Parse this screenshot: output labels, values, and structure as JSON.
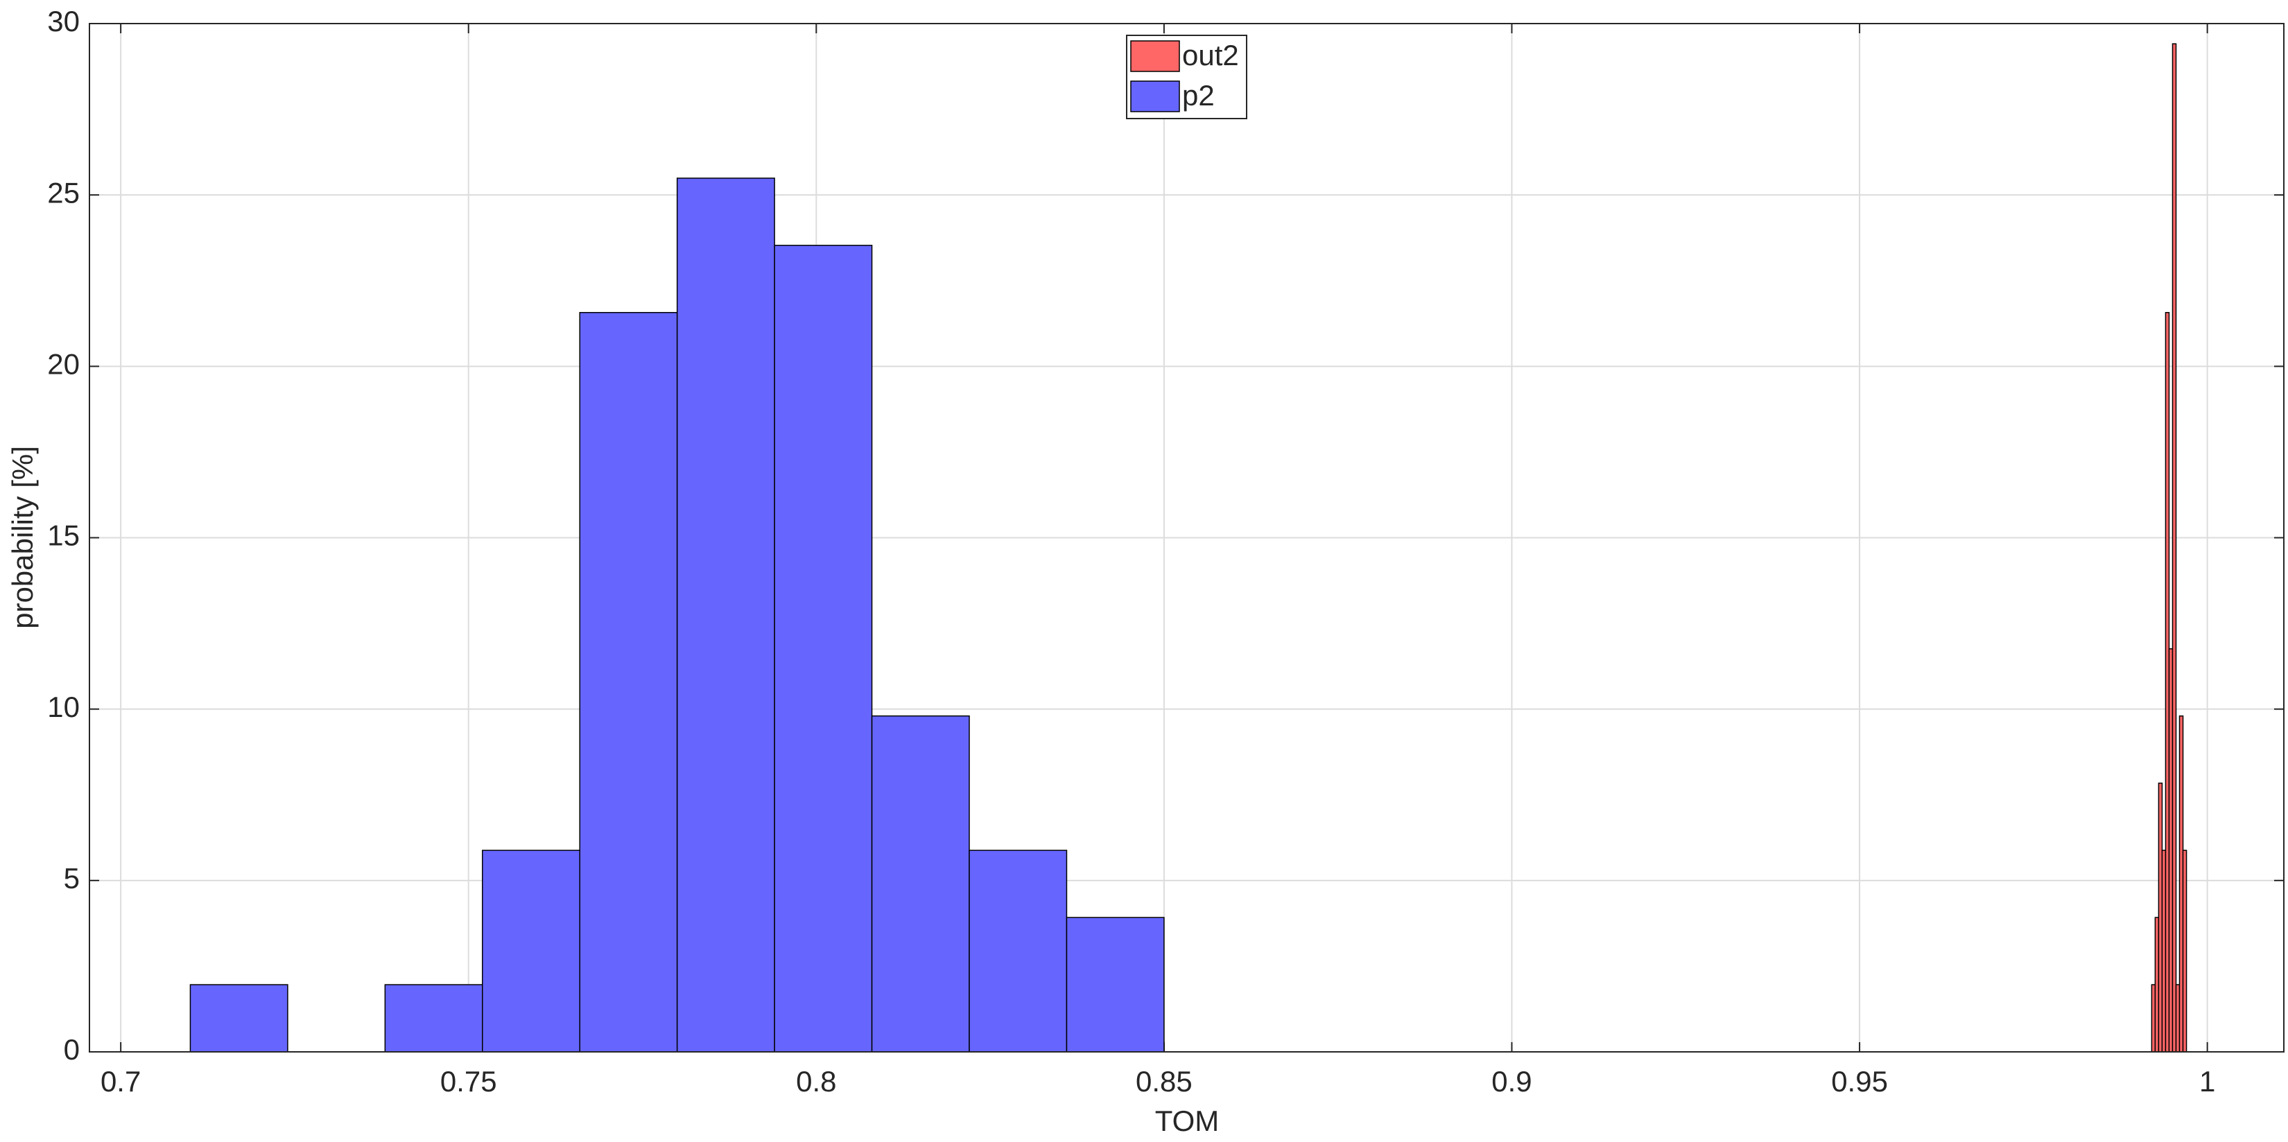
{
  "chart_data": {
    "type": "histogram",
    "xlabel": "TOM",
    "ylabel": "probability [%]",
    "xlim": [
      0.6955,
      1.011
    ],
    "ylim": [
      0,
      30
    ],
    "xticks": [
      0.7,
      0.75,
      0.8,
      0.85,
      0.9,
      0.95,
      1
    ],
    "yticks": [
      0,
      5,
      10,
      15,
      20,
      25,
      30
    ],
    "grid": true,
    "legend": "top",
    "series": [
      {
        "name": "out2",
        "color": "#ff6666",
        "bins": [
          0.992,
          0.9925,
          0.993,
          0.9935,
          0.994,
          0.9945,
          0.995,
          0.9955,
          0.996,
          0.9965,
          0.997
        ],
        "values": [
          1.96,
          3.92,
          7.84,
          5.88,
          21.57,
          11.76,
          29.41,
          1.96,
          9.8,
          5.88
        ]
      },
      {
        "name": "p2",
        "color": "#6666ff",
        "bins": [
          0.71,
          0.724,
          0.738,
          0.752,
          0.766,
          0.78,
          0.794,
          0.808,
          0.822,
          0.836,
          0.85
        ],
        "values": [
          1.96,
          0,
          1.96,
          5.88,
          21.57,
          25.49,
          23.53,
          9.8,
          5.88,
          3.92
        ]
      }
    ]
  }
}
